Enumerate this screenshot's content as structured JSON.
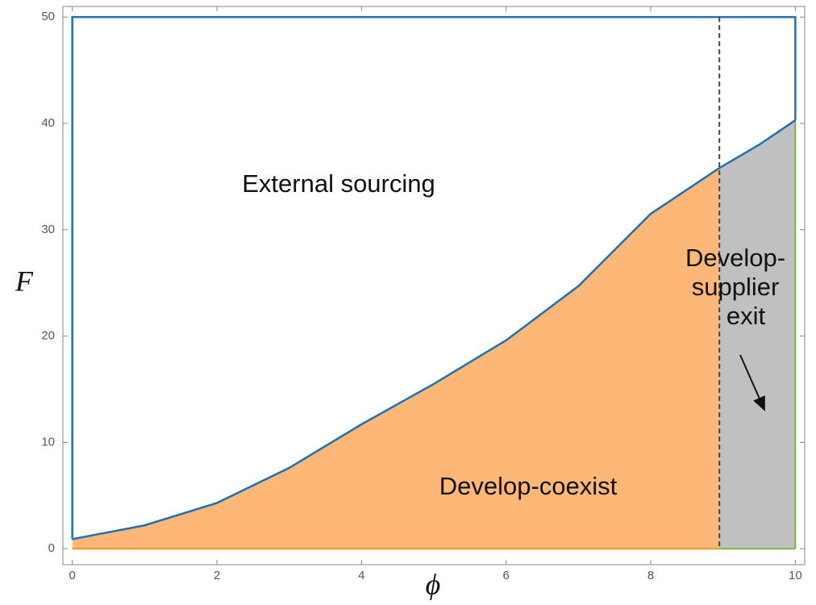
{
  "chart_data": {
    "type": "region",
    "x_label": "ϕ",
    "y_label": "F",
    "xlim": [
      -0.13,
      10.13
    ],
    "ylim": [
      -1.5,
      51
    ],
    "xticks": [
      0,
      2,
      4,
      6,
      8,
      10
    ],
    "yticks": [
      0,
      10,
      20,
      30,
      40,
      50
    ],
    "region_top": 50,
    "threshold": 8.95,
    "x": [
      0,
      1,
      2,
      3,
      4,
      5,
      6,
      7,
      8,
      8.95,
      9.5,
      10
    ],
    "boundary": {
      "color": "#1f6fb4",
      "values": [
        0.9,
        2.2,
        4.3,
        7.6,
        11.7,
        15.5,
        19.6,
        24.7,
        31.5,
        35.8,
        38,
        40.3
      ]
    },
    "regions": [
      {
        "name": "External sourcing",
        "color": "#ffffff"
      },
      {
        "name": "Develop-coexist",
        "color": "#fdb777",
        "edge_color": "#f5921e"
      },
      {
        "lines": [
          "Develop-",
          "supplier",
          "exit"
        ],
        "color": "#c0c0c0",
        "edge_color": "#7cb342"
      }
    ]
  }
}
